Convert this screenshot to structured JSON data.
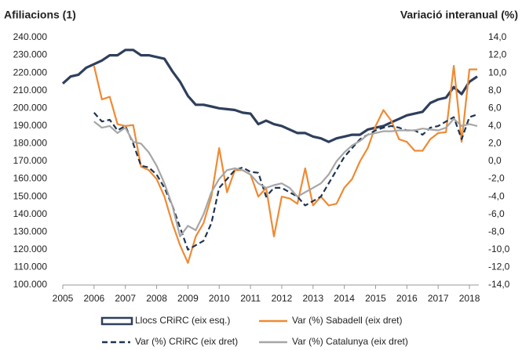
{
  "chart_data": {
    "type": "line",
    "y_label": "Afiliacions (1)",
    "y2_label": "Variació interanual (%)",
    "x": [
      2005,
      2005.25,
      2005.5,
      2005.75,
      2006,
      2006.25,
      2006.5,
      2006.75,
      2007,
      2007.25,
      2007.5,
      2007.75,
      2008,
      2008.25,
      2008.5,
      2008.75,
      2009,
      2009.25,
      2009.5,
      2009.75,
      2010,
      2010.25,
      2010.5,
      2010.75,
      2011,
      2011.25,
      2011.5,
      2011.75,
      2012,
      2012.25,
      2012.5,
      2012.75,
      2013,
      2013.25,
      2013.5,
      2013.75,
      2014,
      2014.25,
      2014.5,
      2014.75,
      2015,
      2015.25,
      2015.5,
      2015.75,
      2016,
      2016.25,
      2016.5,
      2016.75,
      2017,
      2017.25,
      2017.5,
      2017.75,
      2018,
      2018.25
    ],
    "xlim": [
      2005,
      2018.3
    ],
    "xticks": [
      2005,
      2006,
      2007,
      2008,
      2009,
      2010,
      2011,
      2012,
      2013,
      2014,
      2015,
      2016,
      2017,
      2018
    ],
    "ylim": [
      100000,
      240000
    ],
    "yticks": [
      {
        "value": 100000,
        "label": "100.000"
      },
      {
        "value": 110000,
        "label": "110.000"
      },
      {
        "value": 120000,
        "label": "120.000"
      },
      {
        "value": 130000,
        "label": "130.000"
      },
      {
        "value": 140000,
        "label": "140.000"
      },
      {
        "value": 150000,
        "label": "150.000"
      },
      {
        "value": 160000,
        "label": "160.000"
      },
      {
        "value": 170000,
        "label": "170.000"
      },
      {
        "value": 180000,
        "label": "180.000"
      },
      {
        "value": 190000,
        "label": "190.000"
      },
      {
        "value": 200000,
        "label": "200.000"
      },
      {
        "value": 210000,
        "label": "210.000"
      },
      {
        "value": 220000,
        "label": "220.000"
      },
      {
        "value": 230000,
        "label": "230.000"
      },
      {
        "value": 240000,
        "label": "240.000"
      }
    ],
    "y2lim": [
      -14,
      14
    ],
    "y2ticks": [
      {
        "value": -14,
        "label": "-14,0"
      },
      {
        "value": -12,
        "label": "-12,0"
      },
      {
        "value": -10,
        "label": "-10,0"
      },
      {
        "value": -8,
        "label": "-8,0"
      },
      {
        "value": -6,
        "label": "-6,0"
      },
      {
        "value": -4,
        "label": "-4,0"
      },
      {
        "value": -2,
        "label": "-2,0"
      },
      {
        "value": 0,
        "label": "0,0"
      },
      {
        "value": 2,
        "label": "2,0"
      },
      {
        "value": 4,
        "label": "4,0"
      },
      {
        "value": 6,
        "label": "6,0"
      },
      {
        "value": 8,
        "label": "8,0"
      },
      {
        "value": 10,
        "label": "10,0"
      },
      {
        "value": 12,
        "label": "12,0"
      },
      {
        "value": 14,
        "label": "14,0"
      }
    ],
    "series": [
      {
        "name": "Llocs CRiRC (eix esq.)",
        "color": "#2e3f5c",
        "axis": "y",
        "values": [
          214000,
          218000,
          219000,
          223000,
          225000,
          227000,
          230000,
          230000,
          233000,
          233000,
          230000,
          230000,
          229000,
          228000,
          221000,
          215000,
          207000,
          202000,
          202000,
          201000,
          200000,
          199500,
          199000,
          197500,
          197000,
          191000,
          193000,
          191000,
          190000,
          188000,
          186000,
          186000,
          184000,
          183000,
          181000,
          183000,
          184000,
          185000,
          185000,
          188000,
          189000,
          190000,
          192000,
          194000,
          196000,
          197000,
          198000,
          203000,
          205000,
          206000,
          212000,
          208000,
          215000,
          218000
        ]
      },
      {
        "name": "Var (%) Sabadell (eix dret)",
        "color": "#ef8a34",
        "axis": "y2",
        "values": [
          null,
          null,
          null,
          null,
          10.8,
          7.0,
          7.3,
          4.2,
          4.0,
          4.1,
          -0.6,
          -1.0,
          -2.0,
          -4.0,
          -7.0,
          -9.5,
          -11.5,
          -8.5,
          -7.0,
          -4.0,
          1.5,
          -3.5,
          -1.0,
          -1.0,
          -1.5,
          -4.0,
          -3.0,
          -8.5,
          -4.0,
          -4.2,
          -4.8,
          -0.8,
          -5.0,
          -4.0,
          -5.0,
          -4.8,
          -3.0,
          -2.0,
          0.0,
          1.5,
          4.0,
          5.8,
          4.6,
          2.5,
          2.2,
          1.2,
          1.2,
          2.5,
          3.2,
          3.3,
          10.8,
          2.2,
          10.4,
          10.4
        ]
      },
      {
        "name": "Var (%) CRiRC (eix dret)",
        "color": "#1f3552",
        "axis": "y2",
        "dash": true,
        "values": [
          null,
          null,
          null,
          null,
          5.5,
          4.5,
          4.7,
          3.5,
          4.0,
          2.0,
          -0.5,
          -0.7,
          -1.5,
          -3.0,
          -5.0,
          -7.5,
          -10.0,
          -9.5,
          -9.0,
          -7.0,
          -3.0,
          -2.0,
          -1.0,
          -0.7,
          -1.2,
          -1.3,
          -4.0,
          -3.0,
          -3.0,
          -3.5,
          -4.0,
          -5.0,
          -4.5,
          -4.0,
          -2.5,
          -1.0,
          0.5,
          1.5,
          2.5,
          3.0,
          3.5,
          3.8,
          4.0,
          3.8,
          3.5,
          3.5,
          3.0,
          3.8,
          4.0,
          4.5,
          5.0,
          2.5,
          5.0,
          5.3
        ]
      },
      {
        "name": "Var (%) Catalunya (eix dret)",
        "color": "#a6a6a6",
        "axis": "y2",
        "values": [
          null,
          null,
          null,
          null,
          4.5,
          3.8,
          4.0,
          3.2,
          3.8,
          2.2,
          2.0,
          1.0,
          -0.5,
          -2.5,
          -5.0,
          -8.5,
          -7.3,
          -7.8,
          -6.0,
          -3.5,
          -2.0,
          -1.0,
          -0.8,
          -1.0,
          -1.5,
          -2.5,
          -3.0,
          -2.7,
          -2.5,
          -3.0,
          -4.0,
          -3.5,
          -3.0,
          -2.5,
          -1.5,
          0.0,
          1.0,
          1.8,
          2.3,
          3.0,
          3.2,
          3.4,
          3.4,
          3.5,
          3.5,
          3.5,
          3.7,
          3.6,
          3.5,
          3.8,
          4.8,
          4.0,
          4.2,
          4.0
        ]
      }
    ]
  }
}
